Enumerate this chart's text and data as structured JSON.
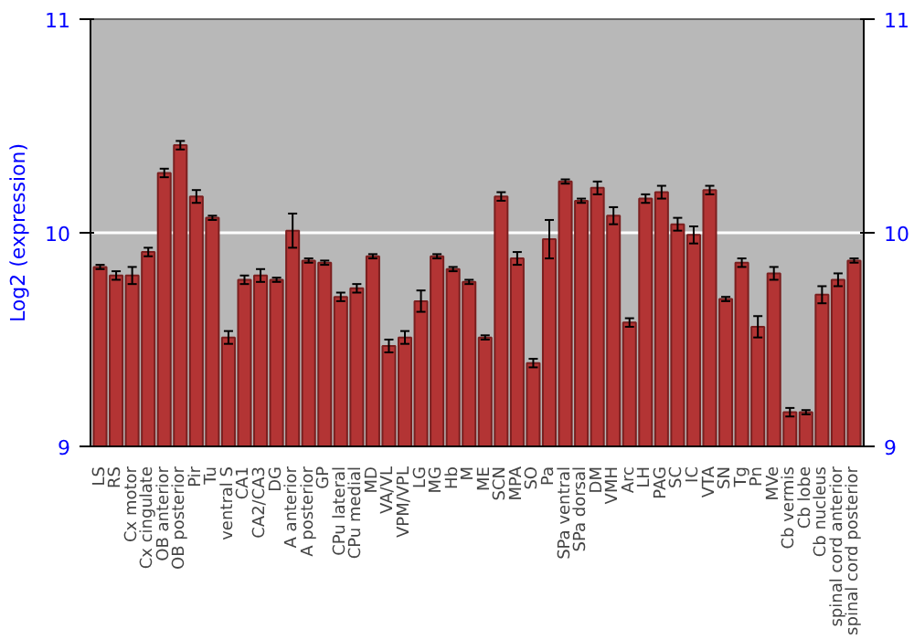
{
  "chart_data": {
    "type": "bar",
    "ylabel": "Log2 (expression)",
    "categories": [
      "LS",
      "RS",
      "Cx motor",
      "Cx cingulate",
      "OB anterior",
      "OB posterior",
      "Pir",
      "Tu",
      "ventral S",
      "CA1",
      "CA2/CA3",
      "DG",
      "A anterior",
      "A posterior",
      "GP",
      "CPu lateral",
      "CPu medial",
      "MD",
      "VA/VL",
      "VPM/VPL",
      "LG",
      "MG",
      "Hb",
      "M",
      "ME",
      "SCN",
      "MPA",
      "SO",
      "Pa",
      "SPa ventral",
      "SPa dorsal",
      "DM",
      "VMH",
      "Arc",
      "LH",
      "PAG",
      "SC",
      "IC",
      "VTA",
      "SN",
      "Tg",
      "Pn",
      "MVe",
      "Cb vermis",
      "Cb lobe",
      "Cb nucleus",
      "spinal cord anterior",
      "spinal cord posterior"
    ],
    "values": [
      9.84,
      9.8,
      9.8,
      9.91,
      10.28,
      10.41,
      10.17,
      10.07,
      9.51,
      9.78,
      9.8,
      9.78,
      10.01,
      9.87,
      9.86,
      9.7,
      9.74,
      9.89,
      9.47,
      9.51,
      9.68,
      9.89,
      9.83,
      9.77,
      9.51,
      10.17,
      9.88,
      9.39,
      9.97,
      10.24,
      10.15,
      10.21,
      10.08,
      9.58,
      10.16,
      10.19,
      10.04,
      9.99,
      10.2,
      9.69,
      9.86,
      9.56,
      9.81,
      9.16,
      9.16,
      9.71,
      9.78,
      9.87
    ],
    "errors": [
      0.01,
      0.02,
      0.04,
      0.02,
      0.02,
      0.02,
      0.03,
      0.01,
      0.03,
      0.02,
      0.03,
      0.01,
      0.08,
      0.01,
      0.01,
      0.02,
      0.02,
      0.01,
      0.03,
      0.03,
      0.05,
      0.01,
      0.01,
      0.01,
      0.01,
      0.02,
      0.03,
      0.02,
      0.09,
      0.01,
      0.01,
      0.03,
      0.04,
      0.02,
      0.02,
      0.03,
      0.03,
      0.04,
      0.02,
      0.01,
      0.02,
      0.05,
      0.03,
      0.02,
      0.01,
      0.04,
      0.03,
      0.01
    ],
    "color": "#b33434",
    "ylim": [
      9,
      11
    ],
    "yticks": [
      9,
      10,
      11
    ],
    "y2lim": [
      9,
      11
    ],
    "y2ticks": [
      9,
      10,
      11
    ],
    "grid": "y"
  }
}
